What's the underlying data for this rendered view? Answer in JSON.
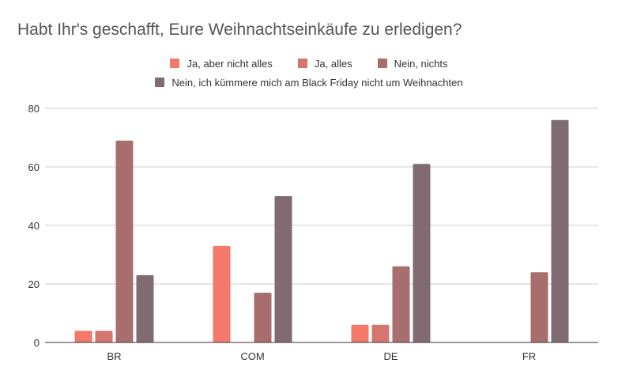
{
  "chart_data": {
    "type": "bar",
    "title": "Habt Ihr's geschafft, Eure Weihnachtseinkäufe zu erledigen?",
    "categories": [
      "BR",
      "COM",
      "DE",
      "FR"
    ],
    "series": [
      {
        "name": "Ja, aber nicht alles",
        "color": "#f4796b",
        "values": [
          4,
          33,
          6,
          null
        ]
      },
      {
        "name": "Ja, alles",
        "color": "#d3766f",
        "values": [
          4,
          null,
          6,
          null
        ]
      },
      {
        "name": "Nein, nichts",
        "color": "#a86e6e",
        "values": [
          69,
          17,
          26,
          24
        ]
      },
      {
        "name": "Nein, ich kümmere mich am Black Friday nicht um Weihnachten",
        "color": "#806b72",
        "values": [
          23,
          50,
          61,
          76
        ]
      }
    ],
    "ylim": [
      0,
      80
    ],
    "yticks": [
      0,
      20,
      40,
      60,
      80
    ],
    "grid": true,
    "legend_position": "top"
  }
}
